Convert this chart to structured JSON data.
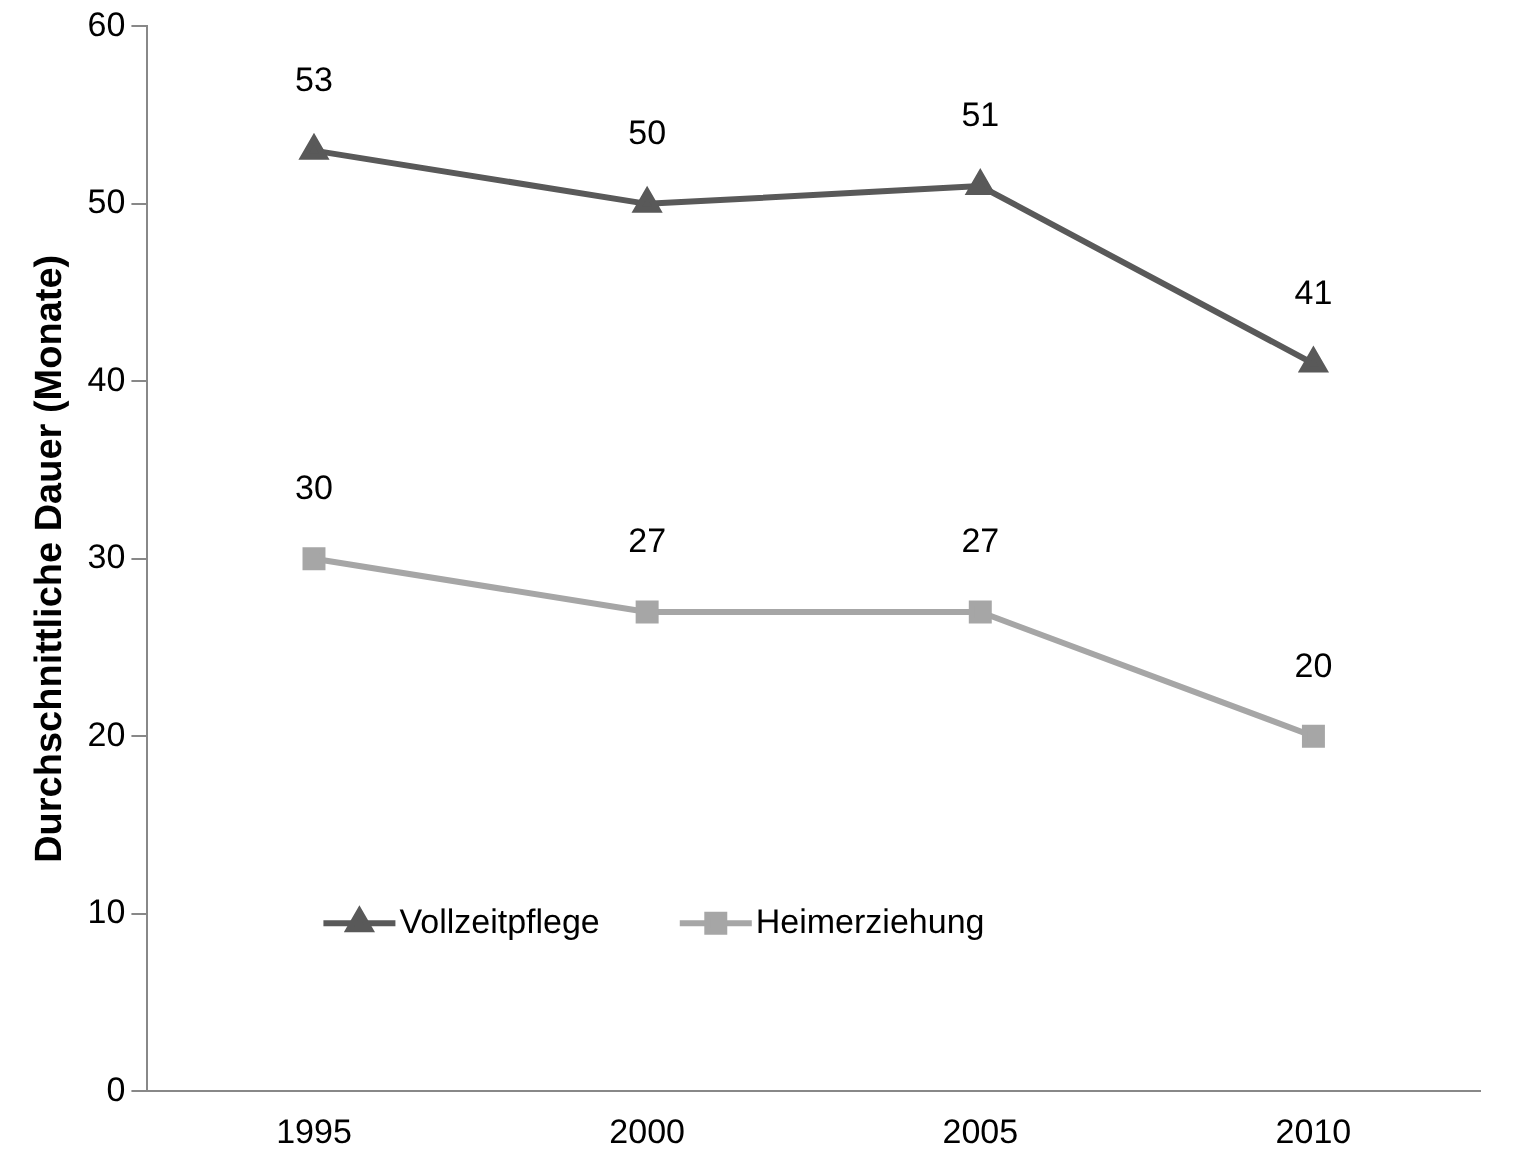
{
  "chart_data": {
    "type": "line",
    "ylabel": "Durchschnittliche Dauer (Monate)",
    "categories": [
      "1995",
      "2000",
      "2005",
      "2010"
    ],
    "series": [
      {
        "name": "Vollzeitpflege",
        "color": "#595959",
        "marker": "triangle",
        "values": [
          53,
          50,
          51,
          41
        ]
      },
      {
        "name": "Heimerziehung",
        "color": "#a6a6a6",
        "marker": "square",
        "values": [
          30,
          27,
          27,
          20
        ]
      }
    ],
    "ylim": [
      0,
      60
    ],
    "yticks": [
      0,
      10,
      20,
      30,
      40,
      50,
      60
    ],
    "grid": false,
    "legend": "bottom left",
    "data_labels": true
  }
}
